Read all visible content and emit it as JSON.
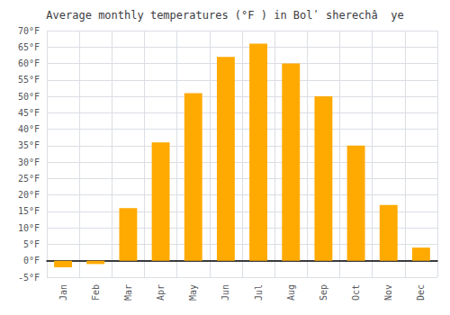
{
  "chart_data": {
    "type": "bar",
    "title": "Average monthly temperatures (°F ) in Bolʹ sherechâ  ye",
    "categories": [
      "Jan",
      "Feb",
      "Mar",
      "Apr",
      "May",
      "Jun",
      "Jul",
      "Aug",
      "Sep",
      "Oct",
      "Nov",
      "Dec"
    ],
    "values": [
      -2,
      -1,
      16,
      36,
      51,
      62,
      66,
      60,
      50,
      35,
      17,
      4
    ],
    "color": "#FFAA00",
    "ylim": [
      -5,
      70
    ],
    "yticks": [
      {
        "value": -5,
        "label": "-5°F"
      },
      {
        "value": 0,
        "label": "0°F"
      },
      {
        "value": 5,
        "label": "5°F"
      },
      {
        "value": 10,
        "label": "10°F"
      },
      {
        "value": 15,
        "label": "15°F"
      },
      {
        "value": 20,
        "label": "20°F"
      },
      {
        "value": 25,
        "label": "25°F"
      },
      {
        "value": 30,
        "label": "30°F"
      },
      {
        "value": 35,
        "label": "35°F"
      },
      {
        "value": 40,
        "label": "40°F"
      },
      {
        "value": 45,
        "label": "45°F"
      },
      {
        "value": 50,
        "label": "50°F"
      },
      {
        "value": 55,
        "label": "55°F"
      },
      {
        "value": 60,
        "label": "60°F"
      },
      {
        "value": 65,
        "label": "65°F"
      },
      {
        "value": 70,
        "label": "70°F"
      }
    ],
    "grid": true
  }
}
